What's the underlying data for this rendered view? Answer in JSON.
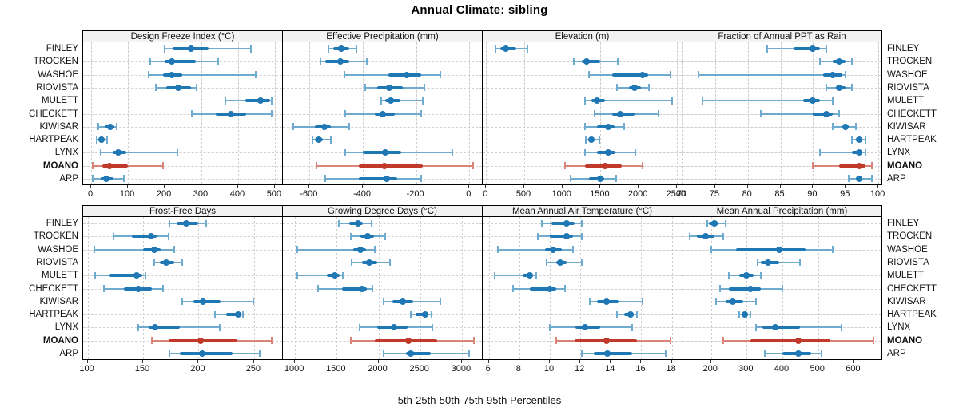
{
  "title": "Annual Climate: sibling",
  "caption": "5th-25th-50th-75th-95th Percentiles",
  "percentile_labels": [
    "5th",
    "25th",
    "50th",
    "75th",
    "95th"
  ],
  "sites": [
    "FINLEY",
    "TROCKEN",
    "WASHOE",
    "RIOVISTA",
    "MULETT",
    "CHECKETT",
    "KIWISAR",
    "HARTPEAK",
    "LYNX",
    "MOANO",
    "ARP"
  ],
  "highlight_site": "MOANO",
  "colors": {
    "primary": "#1f77b4",
    "primary_soft": "#6faacf",
    "highlight": "#c0392b",
    "highlight_soft": "#d98379",
    "strip_bg": "#f2f2f2",
    "grid": "#cfcfcf",
    "panel_border": "#000000"
  },
  "chart_data": [
    {
      "type": "interval",
      "title": "Design Freeze Index (°C)",
      "row": 0,
      "col": 0,
      "domain": [
        -22,
        522
      ],
      "ticks": [
        0,
        100,
        200,
        300,
        400,
        500
      ],
      "series": [
        [
          200,
          222,
          272,
          320,
          435
        ],
        [
          160,
          200,
          220,
          285,
          345
        ],
        [
          157,
          196,
          220,
          247,
          447
        ],
        [
          175,
          205,
          238,
          272,
          288
        ],
        [
          365,
          420,
          460,
          487,
          492
        ],
        [
          275,
          340,
          380,
          422,
          492
        ],
        [
          20,
          36,
          52,
          62,
          70
        ],
        [
          14,
          20,
          27,
          36,
          44
        ],
        [
          25,
          58,
          73,
          96,
          235
        ],
        [
          5,
          30,
          50,
          100,
          195
        ],
        [
          5,
          25,
          42,
          60,
          88
        ]
      ]
    },
    {
      "type": "interval",
      "title": "Effective Precipitation (mm)",
      "row": 0,
      "col": 1,
      "domain": [
        -700,
        50
      ],
      "ticks": [
        -600,
        -400,
        -200,
        0
      ],
      "series": [
        [
          -530,
          -510,
          -480,
          -450,
          -425
        ],
        [
          -560,
          -540,
          -485,
          -450,
          -385
        ],
        [
          -470,
          -305,
          -235,
          -180,
          -110
        ],
        [
          -390,
          -345,
          -300,
          -250,
          -170
        ],
        [
          -330,
          -315,
          -295,
          -260,
          -175
        ],
        [
          -465,
          -355,
          -325,
          -280,
          -180
        ],
        [
          -660,
          -580,
          -545,
          -520,
          -450
        ],
        [
          -590,
          -580,
          -565,
          -550,
          -520
        ],
        [
          -465,
          -400,
          -315,
          -255,
          -65
        ],
        [
          -575,
          -415,
          -320,
          -175,
          15
        ],
        [
          -540,
          -415,
          -310,
          -270,
          -180
        ]
      ]
    },
    {
      "type": "interval",
      "title": "Elevation (m)",
      "row": 0,
      "col": 2,
      "domain": [
        -45,
        2575
      ],
      "ticks": [
        0,
        500,
        1000,
        1500,
        2000,
        2500
      ],
      "series": [
        [
          120,
          190,
          260,
          400,
          540
        ],
        [
          1150,
          1250,
          1320,
          1500,
          1730
        ],
        [
          1350,
          1650,
          2050,
          2120,
          2420
        ],
        [
          1720,
          1870,
          1950,
          2030,
          2130
        ],
        [
          1300,
          1380,
          1450,
          1560,
          2440
        ],
        [
          1420,
          1650,
          1760,
          1950,
          2260
        ],
        [
          1300,
          1450,
          1600,
          1680,
          1810
        ],
        [
          1310,
          1350,
          1380,
          1420,
          1490
        ],
        [
          1300,
          1450,
          1600,
          1700,
          1960
        ],
        [
          1030,
          1300,
          1560,
          1780,
          2050
        ],
        [
          1110,
          1350,
          1500,
          1550,
          1700
        ]
      ]
    },
    {
      "type": "interval",
      "title": "Fraction of Annual PPT as Rain",
      "row": 0,
      "col": 3,
      "domain": [
        70,
        100.6
      ],
      "ticks": [
        70,
        75,
        80,
        85,
        90,
        95,
        100
      ],
      "series": [
        [
          83,
          87,
          90,
          91,
          92
        ],
        [
          91,
          93,
          94,
          95,
          96
        ],
        [
          72.5,
          91.5,
          93,
          94.5,
          95
        ],
        [
          92,
          93.5,
          94,
          95,
          96
        ],
        [
          73,
          88.5,
          90,
          91,
          93
        ],
        [
          82,
          90,
          92,
          93,
          94
        ],
        [
          93,
          94.5,
          95,
          95.5,
          96.5
        ],
        [
          96,
          96.5,
          97,
          97.5,
          98
        ],
        [
          91,
          96,
          97,
          97.5,
          98
        ],
        [
          90,
          94,
          97,
          98,
          99
        ],
        [
          95.5,
          96.5,
          97,
          97.5,
          99
        ]
      ]
    },
    {
      "type": "interval",
      "title": "Frost-Free Days",
      "row": 1,
      "col": 0,
      "domain": [
        96,
        276
      ],
      "ticks": [
        100,
        150,
        200,
        250
      ],
      "series": [
        [
          174,
          180,
          189,
          200,
          207
        ],
        [
          123,
          140,
          157,
          162,
          173
        ],
        [
          106,
          150,
          160,
          166,
          178
        ],
        [
          160,
          165,
          171,
          178,
          185
        ],
        [
          107,
          120,
          144,
          149,
          152
        ],
        [
          115,
          133,
          146,
          158,
          168
        ],
        [
          185,
          195,
          204,
          220,
          249
        ],
        [
          215,
          225,
          236,
          238,
          240
        ],
        [
          146,
          155,
          161,
          183,
          219
        ],
        [
          158,
          173,
          202,
          235,
          266
        ],
        [
          174,
          183,
          203,
          231,
          255
        ]
      ]
    },
    {
      "type": "interval",
      "title": "Growing Degree Days (°C)",
      "row": 1,
      "col": 1,
      "domain": [
        855,
        3250
      ],
      "ticks": [
        1000,
        1500,
        2000,
        2500,
        3000
      ],
      "series": [
        [
          1530,
          1650,
          1760,
          1810,
          1920
        ],
        [
          1670,
          1780,
          1870,
          1950,
          2080
        ],
        [
          1030,
          1700,
          1780,
          1850,
          1960
        ],
        [
          1680,
          1800,
          1890,
          1990,
          2140
        ],
        [
          1030,
          1380,
          1480,
          1540,
          1570
        ],
        [
          1280,
          1560,
          1800,
          1860,
          1930
        ],
        [
          2060,
          2170,
          2290,
          2420,
          2740
        ],
        [
          2390,
          2450,
          2560,
          2600,
          2640
        ],
        [
          1770,
          1990,
          2190,
          2350,
          2650
        ],
        [
          1670,
          1960,
          2360,
          2700,
          3140
        ],
        [
          2060,
          2330,
          2390,
          2630,
          3090
        ]
      ]
    },
    {
      "type": "interval",
      "title": "Mean Annual Air Temperature (°C)",
      "row": 1,
      "col": 2,
      "domain": [
        5.6,
        18.7
      ],
      "ticks": [
        6,
        8,
        10,
        12,
        14,
        16,
        18
      ],
      "series": [
        [
          9.5,
          10.1,
          11.1,
          11.6,
          12.1
        ],
        [
          9.2,
          10.0,
          11.1,
          11.5,
          12.1
        ],
        [
          6.6,
          9.7,
          10.2,
          10.8,
          11.5
        ],
        [
          9.8,
          10.4,
          10.7,
          11.1,
          12.1
        ],
        [
          6.4,
          8.2,
          8.7,
          8.9,
          9.1
        ],
        [
          7.6,
          8.7,
          10.0,
          10.4,
          11.0
        ],
        [
          12.6,
          13.1,
          13.7,
          14.5,
          16.1
        ],
        [
          14.4,
          14.9,
          15.3,
          15.5,
          15.7
        ],
        [
          10.0,
          11.7,
          12.3,
          13.3,
          15.4
        ],
        [
          10.4,
          11.6,
          13.7,
          15.7,
          17.9
        ],
        [
          12.1,
          12.9,
          13.8,
          15.4,
          17.6
        ]
      ]
    },
    {
      "type": "interval",
      "title": "Mean Annual Precipitation (mm)",
      "row": 1,
      "col": 3,
      "domain": [
        120,
        680
      ],
      "ticks": [
        200,
        300,
        400,
        500,
        600
      ],
      "series": [
        [
          190,
          195,
          210,
          220,
          240
        ],
        [
          140,
          160,
          185,
          210,
          235
        ],
        [
          200,
          270,
          390,
          465,
          540
        ],
        [
          330,
          340,
          360,
          390,
          450
        ],
        [
          250,
          280,
          300,
          320,
          340
        ],
        [
          225,
          250,
          310,
          340,
          400
        ],
        [
          215,
          240,
          260,
          290,
          325
        ],
        [
          280,
          285,
          295,
          300,
          310
        ],
        [
          325,
          345,
          380,
          450,
          565
        ],
        [
          235,
          310,
          445,
          535,
          655
        ],
        [
          350,
          400,
          445,
          480,
          510
        ]
      ]
    }
  ]
}
